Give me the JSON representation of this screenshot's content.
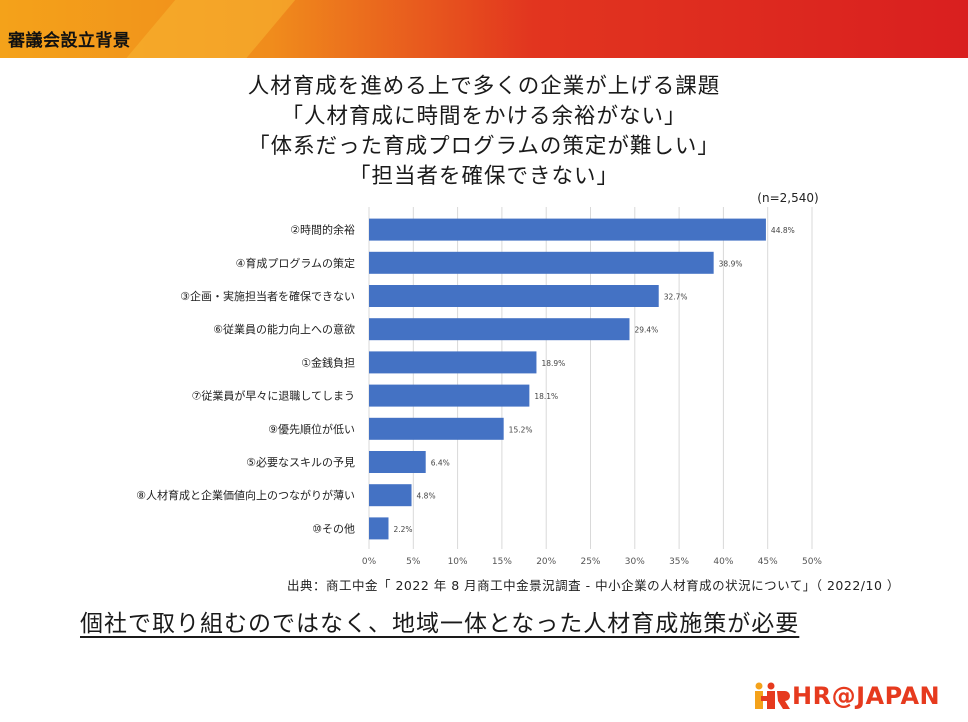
{
  "header": {
    "title": "審議会設立背景",
    "colors": {
      "left": "#f4a21a",
      "right": "#d91f1f"
    }
  },
  "headline": {
    "lines": [
      "人材育成を進める上で多くの企業が上げる課題",
      "「人材育成に時間をかける余裕がない」",
      "「体系だった育成プログラムの策定が難しい」",
      "「担当者を確保できない」"
    ]
  },
  "chart_data": {
    "type": "bar",
    "orientation": "horizontal",
    "sample_note": "(n=2,540)",
    "categories": [
      "②時間的余裕",
      "④育成プログラムの策定",
      "③企画・実施担当者を確保できない",
      "⑥従業員の能力向上への意欲",
      "①金銭負担",
      "⑦従業員が早々に退職してしまう",
      "⑨優先順位が低い",
      "⑤必要なスキルの予見",
      "⑧人材育成と企業価値向上のつながりが薄い",
      "⑩その他"
    ],
    "values": [
      44.8,
      38.9,
      32.7,
      29.4,
      18.9,
      18.1,
      15.2,
      6.4,
      4.8,
      2.2
    ],
    "value_labels": [
      "44.8%",
      "38.9%",
      "32.7%",
      "29.4%",
      "18.9%",
      "18.1%",
      "15.2%",
      "6.4%",
      "4.8%",
      "2.2%"
    ],
    "xlim": [
      0,
      50
    ],
    "xticks": [
      0,
      5,
      10,
      15,
      20,
      25,
      30,
      35,
      40,
      45,
      50
    ],
    "xtick_labels": [
      "0%",
      "5%",
      "10%",
      "15%",
      "20%",
      "25%",
      "30%",
      "35%",
      "40%",
      "45%",
      "50%"
    ],
    "grid": true,
    "bar_color": "#4472c4"
  },
  "source": "出典：商工中金「 2022 年 8 月商工中金景況調査 - 中小企業の人材育成の状況について」（ 2022/10 ）",
  "conclusion": "個社で取り組むのではなく、地域一体となった人材育成施策が必要",
  "logo": {
    "text": "HR@JAPAN",
    "color": "#e63a1e",
    "icon": "hr-people-icon"
  }
}
